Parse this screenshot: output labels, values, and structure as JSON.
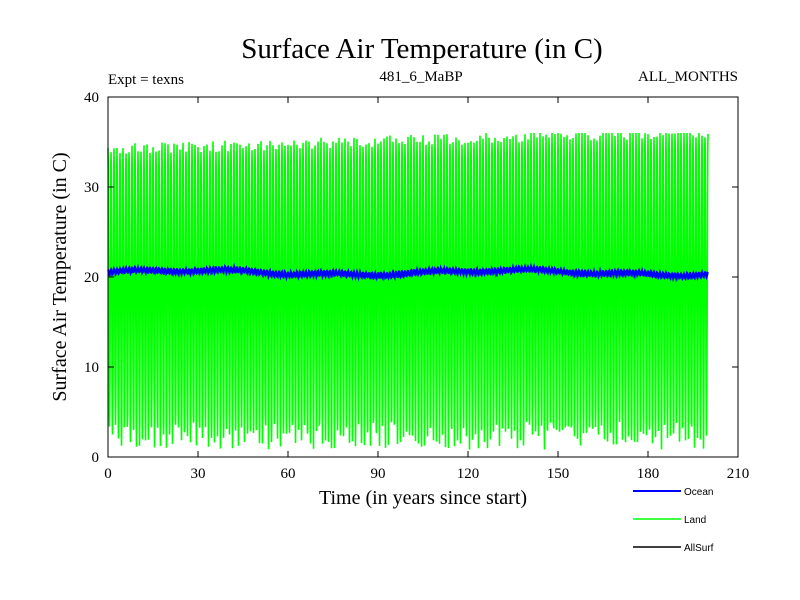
{
  "chart_data": {
    "type": "line",
    "title": "Surface Air Temperature (in C)",
    "subtitle_left": "Expt = texns",
    "subtitle_center": "481_6_MaBP",
    "subtitle_right": "ALL_MONTHS",
    "xlabel": "Time (in years since start)",
    "ylabel": "Surface Air Temperature (in C)",
    "xlim": [
      0,
      210
    ],
    "ylim": [
      0,
      40
    ],
    "xticks": [
      0,
      30,
      60,
      90,
      120,
      150,
      180,
      210
    ],
    "yticks": [
      0,
      10,
      20,
      30,
      40
    ],
    "grid": false,
    "legend_position": "bottom-right",
    "series": [
      {
        "name": "Ocean",
        "color": "#0000ff",
        "description": "monthly values oscillating narrowly around 20.5",
        "x_range": [
          0,
          200
        ],
        "approx_min": 19.8,
        "approx_max": 21.2,
        "approx_mean": 20.5
      },
      {
        "name": "Land",
        "color": "#00ff00",
        "description": "strong seasonal cycle each year",
        "x_range": [
          0,
          200
        ],
        "approx_min": 0.8,
        "approx_max": 36.0,
        "approx_mean": 19.0
      },
      {
        "name": "AllSurf",
        "color": "#000000",
        "description": "listed in legend; hidden behind Land curve",
        "x_range": [
          0,
          200
        ]
      }
    ]
  }
}
